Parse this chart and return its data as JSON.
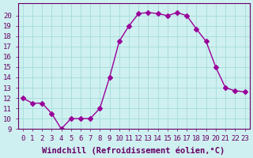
{
  "hours": [
    0,
    1,
    2,
    3,
    4,
    5,
    6,
    7,
    8,
    9,
    10,
    11,
    12,
    13,
    14,
    15,
    16,
    17,
    18,
    19,
    20,
    21,
    22,
    23
  ],
  "values": [
    12,
    11.5,
    11.5,
    10.5,
    9,
    10,
    10,
    10,
    11,
    14,
    17.5,
    19,
    20.2,
    20.3,
    20.2,
    20,
    20.3,
    20,
    18.7,
    17.5,
    15,
    13,
    12.7,
    12.6
  ],
  "line_color": "#990099",
  "marker": "D",
  "marker_size": 3,
  "bg_color": "#cff0f0",
  "grid_color": "#aadddd",
  "xlabel": "Windchill (Refroidissement éolien,°C)",
  "ylim": [
    9,
    21
  ],
  "xlim_min": -0.5,
  "xlim_max": 23.5,
  "yticks": [
    9,
    10,
    11,
    12,
    13,
    14,
    15,
    16,
    17,
    18,
    19,
    20
  ],
  "xticks": [
    0,
    1,
    2,
    3,
    4,
    5,
    6,
    7,
    8,
    9,
    10,
    11,
    12,
    13,
    14,
    15,
    16,
    17,
    18,
    19,
    20,
    21,
    22,
    23
  ],
  "xlabel_fontsize": 7.5,
  "tick_fontsize": 6.5,
  "axis_color": "#660066"
}
